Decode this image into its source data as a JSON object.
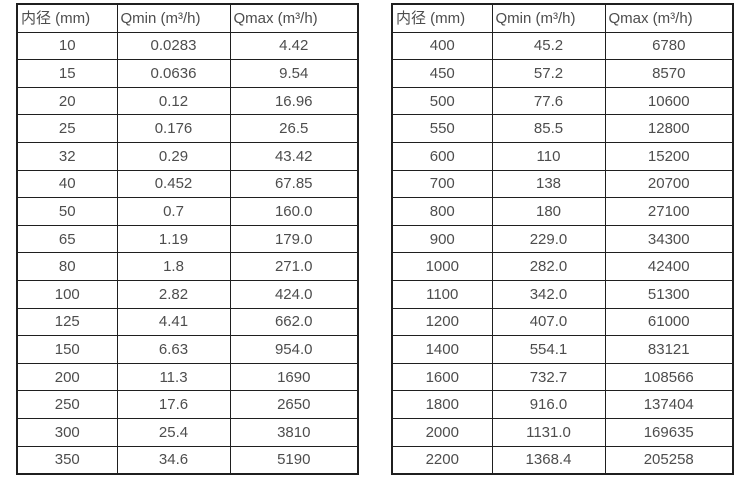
{
  "page": {
    "background": "#ffffff"
  },
  "colors": {
    "table_border": "#1f1f1f",
    "text": "#4d4d4d"
  },
  "tables": [
    {
      "name": "flow-spec-small-diameters",
      "headers": [
        "内径 (mm)",
        "Qmin (m³/h)",
        "Qmax (m³/h)"
      ],
      "rows": [
        [
          "10",
          "0.0283",
          "4.42"
        ],
        [
          "15",
          "0.0636",
          "9.54"
        ],
        [
          "20",
          "0.12",
          "16.96"
        ],
        [
          "25",
          "0.176",
          "26.5"
        ],
        [
          "32",
          "0.29",
          "43.42"
        ],
        [
          "40",
          "0.452",
          "67.85"
        ],
        [
          "50",
          "0.7",
          "160.0"
        ],
        [
          "65",
          "1.19",
          "179.0"
        ],
        [
          "80",
          "1.8",
          "271.0"
        ],
        [
          "100",
          "2.82",
          "424.0"
        ],
        [
          "125",
          "4.41",
          "662.0"
        ],
        [
          "150",
          "6.63",
          "954.0"
        ],
        [
          "200",
          "11.3",
          "1690"
        ],
        [
          "250",
          "17.6",
          "2650"
        ],
        [
          "300",
          "25.4",
          "3810"
        ],
        [
          "350",
          "34.6",
          "5190"
        ]
      ]
    },
    {
      "name": "flow-spec-large-diameters",
      "headers": [
        "内径 (mm)",
        "Qmin (m³/h)",
        "Qmax (m³/h)"
      ],
      "rows": [
        [
          "400",
          "45.2",
          "6780"
        ],
        [
          "450",
          "57.2",
          "8570"
        ],
        [
          "500",
          "77.6",
          "10600"
        ],
        [
          "550",
          "85.5",
          "12800"
        ],
        [
          "600",
          "110",
          "15200"
        ],
        [
          "700",
          "138",
          "20700"
        ],
        [
          "800",
          "180",
          "27100"
        ],
        [
          "900",
          "229.0",
          "34300"
        ],
        [
          "1000",
          "282.0",
          "42400"
        ],
        [
          "1100",
          "342.0",
          "51300"
        ],
        [
          "1200",
          "407.0",
          "61000"
        ],
        [
          "1400",
          "554.1",
          "83121"
        ],
        [
          "1600",
          "732.7",
          "108566"
        ],
        [
          "1800",
          "916.0",
          "137404"
        ],
        [
          "2000",
          "1131.0",
          "169635"
        ],
        [
          "2200",
          "1368.4",
          "205258"
        ]
      ]
    }
  ]
}
